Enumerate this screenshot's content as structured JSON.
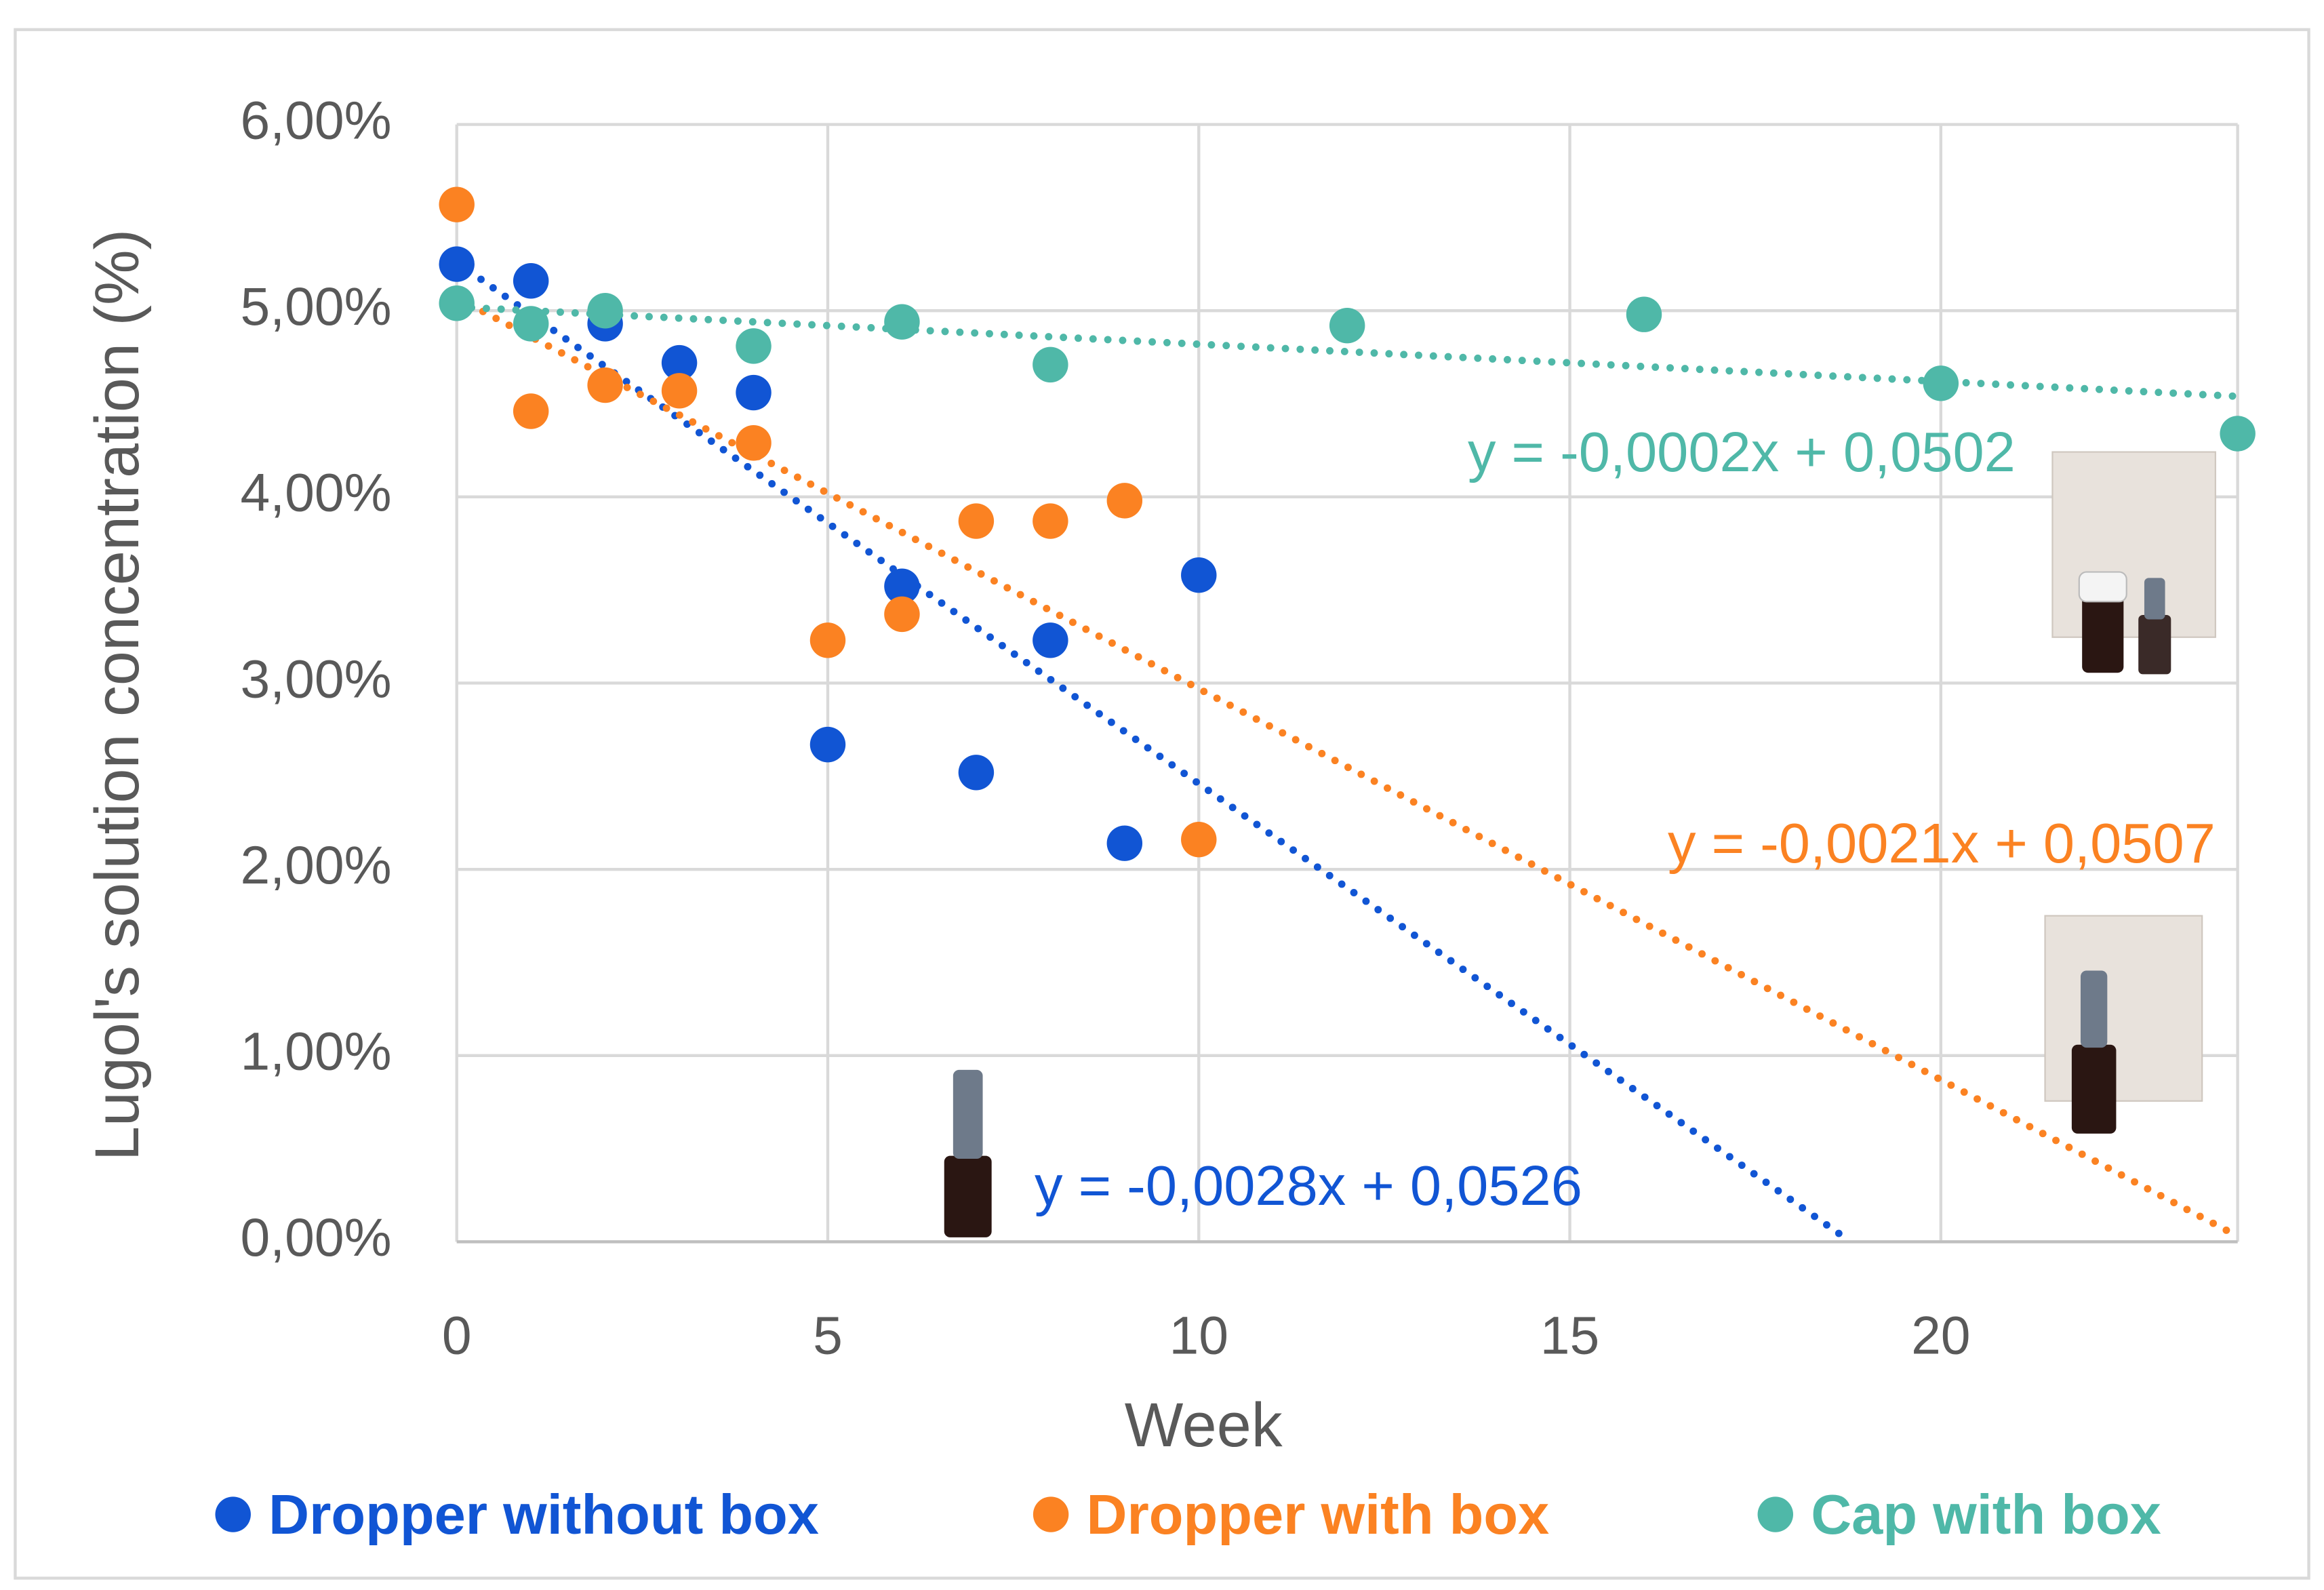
{
  "chart_data": {
    "type": "scatter",
    "x_label": "Week",
    "y_label": "Lugol's solution concentration (%)",
    "xlim": [
      0,
      24
    ],
    "ylim": [
      0,
      6
    ],
    "xticks": [
      0,
      5,
      10,
      15,
      20
    ],
    "yticks": [
      {
        "value": 0,
        "label": "0,00%"
      },
      {
        "value": 1,
        "label": "1,00%"
      },
      {
        "value": 2,
        "label": "2,00%"
      },
      {
        "value": 3,
        "label": "3,00%"
      },
      {
        "value": 4,
        "label": "4,00%"
      },
      {
        "value": 5,
        "label": "5,00%"
      },
      {
        "value": 6,
        "label": "6,00%"
      }
    ],
    "grid": true,
    "legend": "bottom",
    "series": [
      {
        "name": "Dropper without box",
        "color": "#1155d4",
        "x": [
          0,
          1,
          2,
          3,
          4,
          5,
          6,
          7,
          8,
          9,
          10
        ],
        "values": [
          5.25,
          5.16,
          4.93,
          4.72,
          4.56,
          2.67,
          3.52,
          2.52,
          3.23,
          2.14,
          3.58
        ],
        "trendline": {
          "label": "y = -0,0028x + 0,0526",
          "slope": -0.28,
          "intercept": 5.26
        }
      },
      {
        "name": "Dropper with box",
        "color": "#fb8222",
        "x": [
          0,
          1,
          2,
          3,
          4,
          5,
          6,
          7,
          8,
          9,
          10
        ],
        "values": [
          5.57,
          4.46,
          4.6,
          4.57,
          4.29,
          3.23,
          3.37,
          3.87,
          3.87,
          3.98,
          2.16
        ],
        "trendline": {
          "label": "y = -0,0021x + 0,0507",
          "slope": -0.21,
          "intercept": 5.07
        }
      },
      {
        "name": "Cap with box",
        "color": "#4fb8a8",
        "x": [
          0,
          1,
          2,
          4,
          6,
          8,
          12,
          16,
          20,
          24
        ],
        "values": [
          5.04,
          4.93,
          5.0,
          4.81,
          4.94,
          4.71,
          4.92,
          4.98,
          4.61,
          4.34
        ],
        "trendline": {
          "label": "y = -0,0002x + 0,0502",
          "slope": -0.02,
          "intercept": 5.02
        }
      }
    ]
  }
}
